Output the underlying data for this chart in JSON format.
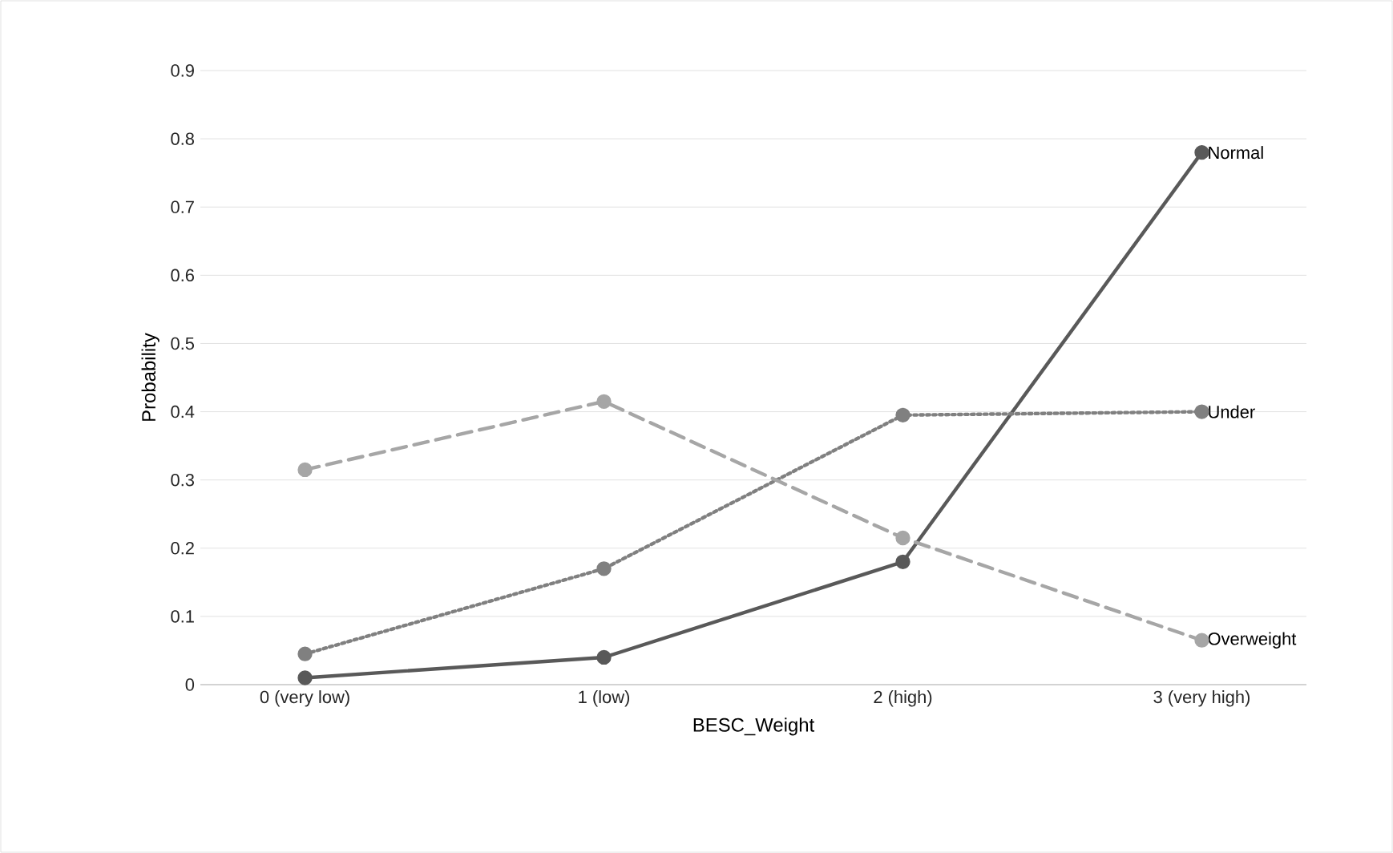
{
  "chart_data": {
    "type": "line",
    "xlabel": "BESC_Weight",
    "ylabel": "Probability",
    "categories": [
      "0 (very low)",
      "1 (low)",
      "2 (high)",
      "3 (very high)"
    ],
    "series": [
      {
        "name": "Normal",
        "color": "#595959",
        "line_style": "solid",
        "values": [
          0.01,
          0.04,
          0.18,
          0.78
        ]
      },
      {
        "name": "Under",
        "color": "#808080",
        "line_style": "dotted",
        "values": [
          0.045,
          0.17,
          0.395,
          0.4
        ]
      },
      {
        "name": "Overweight",
        "color": "#a6a6a6",
        "line_style": "dashed",
        "values": [
          0.315,
          0.415,
          0.215,
          0.065
        ]
      }
    ],
    "ylim": [
      0,
      0.9
    ],
    "yticks": [
      0,
      0.1,
      0.2,
      0.3,
      0.4,
      0.5,
      0.6,
      0.7,
      0.8,
      0.9
    ],
    "grid": "y",
    "marker": "circle"
  }
}
